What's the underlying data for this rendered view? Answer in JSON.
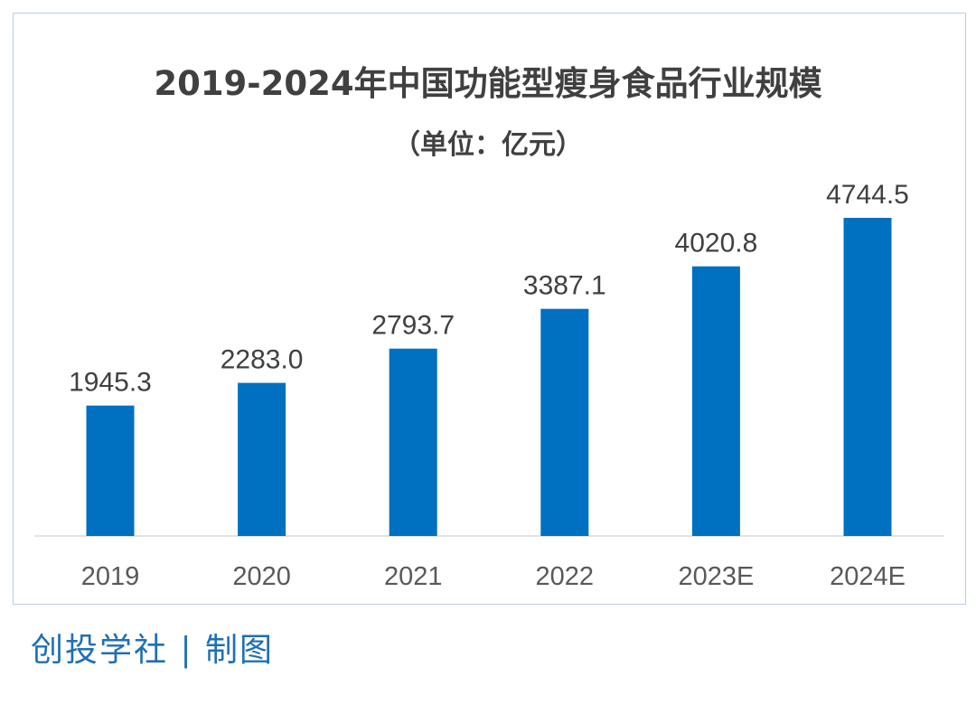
{
  "chart_data": {
    "type": "bar",
    "title": "2019-2024年中国功能型瘦身食品行业规模",
    "subtitle": "（单位：亿元）",
    "categories": [
      "2019",
      "2020",
      "2021",
      "2022",
      "2023E",
      "2024E"
    ],
    "values": [
      1945.3,
      2283.0,
      2793.7,
      3387.1,
      4020.8,
      4744.5
    ],
    "value_labels": [
      "1945.3",
      "2283.0",
      "2793.7",
      "3387.1",
      "4020.8",
      "4744.5"
    ],
    "ylim": [
      0,
      4744.5
    ],
    "grid": false,
    "legend": "none",
    "bar_color": "#0070c0"
  },
  "footer": {
    "credit": "创投学社 | 制图"
  },
  "colors": {
    "bar": "#0070c0",
    "text": "#404040",
    "axis": "#d9d9d9",
    "frame": "#b8cfe6",
    "credit": "#1f6fb5"
  }
}
